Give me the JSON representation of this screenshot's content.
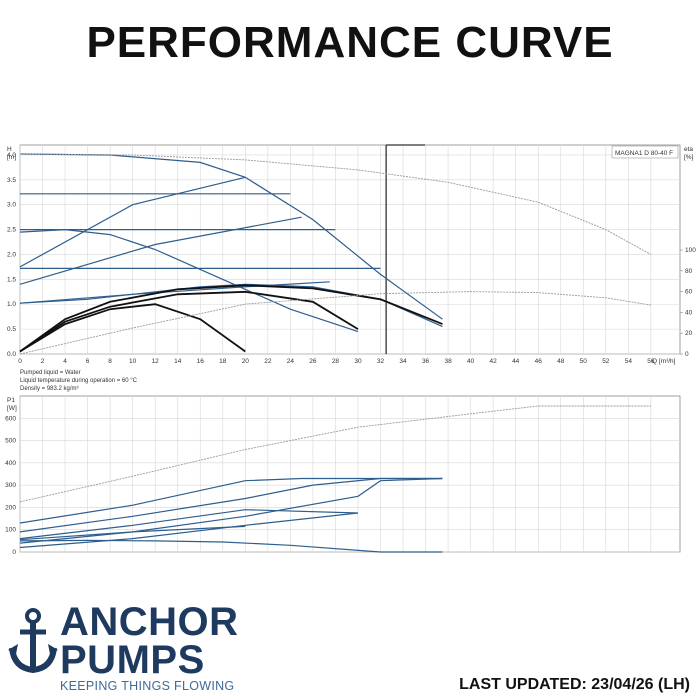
{
  "header": {
    "title": "PERFORMANCE CURVE"
  },
  "brand": {
    "line1": "ANCHOR",
    "line2": "PUMPS",
    "tagline": "KEEPING THINGS FLOWING",
    "color": "#1e3a5f",
    "tagline_color": "#3d6b9a",
    "icon": "anchor-icon"
  },
  "footer": {
    "updated": "LAST UPDATED: 23/04/26 (LH)"
  },
  "colors": {
    "curve_blue": "#2e5e8e",
    "curve_black": "#111111",
    "curve_grey": "#9a9a9a",
    "grid": "#d8d8d8"
  },
  "chart_data": [
    {
      "type": "line",
      "legend_box": "MAGNA1 D 80-40 F",
      "y_label": "H",
      "y_unit": "[m]",
      "y2_label": "eta",
      "y2_unit": "[%]",
      "x_label": "Q [m³/h]",
      "xlim": [
        0,
        58
      ],
      "ylim": [
        0,
        4.2
      ],
      "y2lim": [
        0,
        100
      ],
      "x_ticks": [
        0,
        2,
        4,
        6,
        8,
        10,
        12,
        14,
        16,
        18,
        20,
        22,
        24,
        26,
        28,
        30,
        32,
        34,
        36,
        38,
        40,
        42,
        44,
        46,
        48,
        50,
        52,
        54,
        56
      ],
      "y_ticks": [
        "0.0",
        "0.5",
        "1.0",
        "1.5",
        "2.0",
        "2.5",
        "3.0",
        "3.5",
        "4.0"
      ],
      "y2_ticks": [
        "0",
        "20",
        "40",
        "60",
        "80",
        "100"
      ],
      "operating_line_q": 32.5,
      "notes": [
        "Pumped liquid = Water",
        "Liquid temperature during operation = 60 °C",
        "Density = 983.2 kg/m³"
      ],
      "series": [
        {
          "color": "blue",
          "x": [
            0,
            8,
            16,
            20,
            26,
            32,
            37.5
          ],
          "y": [
            4.02,
            4.0,
            3.85,
            3.55,
            2.7,
            1.6,
            0.7
          ]
        },
        {
          "color": "blue",
          "x": [
            0,
            6,
            12,
            16,
            20,
            26,
            32,
            37.5
          ],
          "y": [
            1.02,
            1.1,
            1.25,
            1.35,
            1.4,
            1.35,
            1.1,
            0.55
          ]
        },
        {
          "color": "blue",
          "x": [
            0,
            4,
            8,
            12,
            18,
            24,
            30
          ],
          "y": [
            2.45,
            2.5,
            2.4,
            2.1,
            1.5,
            0.9,
            0.45
          ]
        },
        {
          "color": "blue",
          "x": [
            0,
            10,
            20
          ],
          "y": [
            1.75,
            3.0,
            3.55
          ]
        },
        {
          "color": "blue",
          "x": [
            0,
            12,
            25
          ],
          "y": [
            1.4,
            2.2,
            2.75
          ]
        },
        {
          "color": "blue",
          "x": [
            0,
            10,
            20,
            27.5
          ],
          "y": [
            1.02,
            1.2,
            1.35,
            1.45
          ]
        },
        {
          "color": "blue",
          "x": [
            0,
            24
          ],
          "y": [
            3.22,
            3.22
          ]
        },
        {
          "color": "blue",
          "x": [
            0,
            28
          ],
          "y": [
            2.5,
            2.5
          ]
        },
        {
          "color": "blue",
          "x": [
            0,
            32
          ],
          "y": [
            1.72,
            1.72
          ]
        },
        {
          "color": "black",
          "x": [
            0,
            4,
            8,
            14,
            20,
            26,
            32,
            37.5
          ],
          "y": [
            0.05,
            0.7,
            1.05,
            1.3,
            1.38,
            1.32,
            1.1,
            0.6
          ]
        },
        {
          "color": "black",
          "x": [
            0,
            4,
            8,
            14,
            20,
            26,
            30
          ],
          "y": [
            0.05,
            0.65,
            0.95,
            1.2,
            1.25,
            1.05,
            0.5
          ]
        },
        {
          "color": "black",
          "x": [
            0,
            4,
            8,
            12,
            16,
            20
          ],
          "y": [
            0.05,
            0.6,
            0.9,
            1.0,
            0.7,
            0.05
          ]
        },
        {
          "color": "grey",
          "axis": "eta",
          "x": [
            0,
            10,
            20,
            32,
            40,
            46,
            52,
            56
          ],
          "y": [
            0,
            25,
            48,
            58,
            60,
            59,
            54,
            47
          ]
        },
        {
          "color": "grey",
          "axis": "H",
          "x": [
            0,
            10,
            20,
            30,
            38,
            46,
            52,
            56
          ],
          "y": [
            4.02,
            4.0,
            3.9,
            3.7,
            3.45,
            3.05,
            2.5,
            2.0
          ]
        }
      ]
    },
    {
      "type": "line",
      "y_label": "P1",
      "y_unit": "[W]",
      "xlim": [
        0,
        58
      ],
      "ylim": [
        0,
        700
      ],
      "y_ticks": [
        "0",
        "100",
        "200",
        "300",
        "400",
        "500",
        "600"
      ],
      "series": [
        {
          "color": "grey",
          "x": [
            0,
            10,
            20,
            30,
            40,
            46,
            52,
            56
          ],
          "y": [
            225,
            340,
            460,
            560,
            620,
            655,
            655,
            655
          ]
        },
        {
          "color": "blue",
          "x": [
            0,
            10,
            20,
            25,
            32,
            37.5
          ],
          "y": [
            130,
            210,
            320,
            330,
            330,
            330
          ]
        },
        {
          "color": "blue",
          "x": [
            0,
            10,
            20,
            26,
            32,
            37.5
          ],
          "y": [
            90,
            160,
            240,
            300,
            330,
            330
          ]
        },
        {
          "color": "blue",
          "x": [
            0,
            10,
            20,
            30
          ],
          "y": [
            60,
            120,
            190,
            175
          ]
        },
        {
          "color": "blue",
          "x": [
            0,
            10,
            20,
            30,
            32,
            37.5
          ],
          "y": [
            40,
            90,
            160,
            250,
            320,
            330
          ]
        },
        {
          "color": "blue",
          "x": [
            0,
            10,
            20,
            30
          ],
          "y": [
            20,
            60,
            120,
            175
          ]
        },
        {
          "color": "blue",
          "x": [
            0,
            6,
            12,
            18,
            24,
            32,
            37.5
          ],
          "y": [
            50,
            52,
            50,
            45,
            30,
            0,
            0
          ]
        },
        {
          "color": "blue",
          "x": [
            0,
            10,
            20
          ],
          "y": [
            55,
            90,
            115
          ]
        }
      ]
    }
  ]
}
